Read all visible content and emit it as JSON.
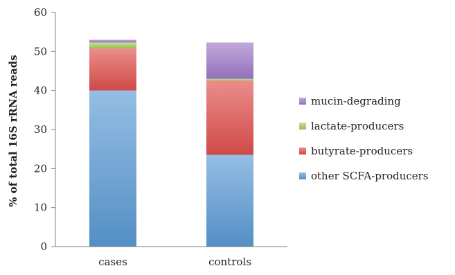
{
  "chart_data": {
    "type": "bar",
    "stacked": true,
    "categories": [
      "cases",
      "controls"
    ],
    "series": [
      {
        "name": "other SCFA-producers",
        "values": [
          40.0,
          23.5
        ],
        "color": "#5b9bd5"
      },
      {
        "name": "butyrate-producers",
        "values": [
          10.8,
          19.0
        ],
        "color": "#e0504d"
      },
      {
        "name": "lactate-producers",
        "values": [
          1.5,
          0.5
        ],
        "color": "#a7cf5a"
      },
      {
        "name": "mucin-degrading",
        "values": [
          0.7,
          9.3
        ],
        "color": "#a07bc9"
      }
    ],
    "ylabel": "% of total 16S rRNA reads",
    "ylim": [
      0,
      60
    ],
    "yticks": [
      0,
      10,
      20,
      30,
      40,
      50,
      60
    ],
    "grid": false,
    "legend_placement": "right",
    "legend_order": [
      "mucin-degrading",
      "lactate-producers",
      "butyrate-producers",
      "other SCFA-producers"
    ]
  }
}
